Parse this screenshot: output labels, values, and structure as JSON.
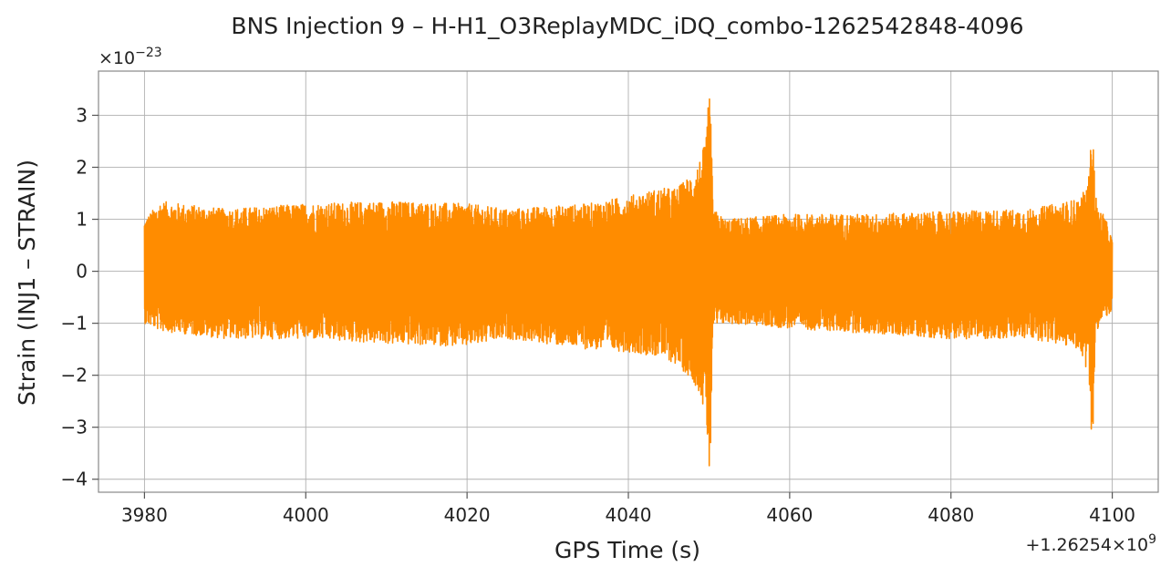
{
  "chart_data": {
    "type": "line",
    "title": "BNS Injection 9 – H-H1_O3ReplayMDC_iDQ_combo-1262542848-4096",
    "xlabel": "GPS Time (s)",
    "ylabel": "Strain (INJ1 – STRAIN)",
    "x_offset_label": "+1.26254×10",
    "x_offset_exp": "9",
    "y_scale_label": "×10",
    "y_scale_exp": "−23",
    "x_ticks": [
      3980,
      4000,
      4020,
      4040,
      4060,
      4080,
      4100
    ],
    "x_tick_labels": [
      "3980",
      "4000",
      "4020",
      "4040",
      "4060",
      "4080",
      "4100"
    ],
    "y_ticks": [
      -4,
      -3,
      -2,
      -1,
      0,
      1,
      2,
      3
    ],
    "y_tick_labels": [
      "−4",
      "−3",
      "−2",
      "−1",
      "0",
      "1",
      "2",
      "3"
    ],
    "xlim": [
      3974.3,
      4105.7
    ],
    "ylim": [
      -4.25,
      3.85
    ],
    "grid": true,
    "series": [
      {
        "color": "#ff8c00",
        "x_range": [
          3980,
          4100
        ],
        "envelope": {
          "x": [
            3980,
            3982,
            3990,
            4000,
            4010,
            4020,
            4025,
            4030,
            4035,
            4040,
            4044,
            4046,
            4048,
            4049,
            4049.7,
            4050,
            4050.15,
            4050.5,
            4052,
            4060,
            4070,
            4080,
            4090,
            4096,
            4097,
            4097.6,
            4097.85,
            4098.2,
            4099,
            4100
          ],
          "upper": [
            1.0,
            1.35,
            1.2,
            1.3,
            1.35,
            1.3,
            1.2,
            1.25,
            1.3,
            1.45,
            1.6,
            1.6,
            1.9,
            2.2,
            2.6,
            3.5,
            3.45,
            1.2,
            1.0,
            1.1,
            1.1,
            1.15,
            1.2,
            1.4,
            1.7,
            2.95,
            1.6,
            1.2,
            1.1,
            0.6
          ],
          "lower": [
            -1.0,
            -1.15,
            -1.3,
            -1.3,
            -1.4,
            -1.45,
            -1.3,
            -1.4,
            -1.5,
            -1.55,
            -1.65,
            -1.8,
            -2.1,
            -2.4,
            -3.0,
            -3.9,
            -3.85,
            -1.1,
            -1.0,
            -1.1,
            -1.2,
            -1.3,
            -1.3,
            -1.5,
            -2.0,
            -3.55,
            -1.7,
            -1.1,
            -0.9,
            -0.8
          ]
        }
      }
    ]
  }
}
